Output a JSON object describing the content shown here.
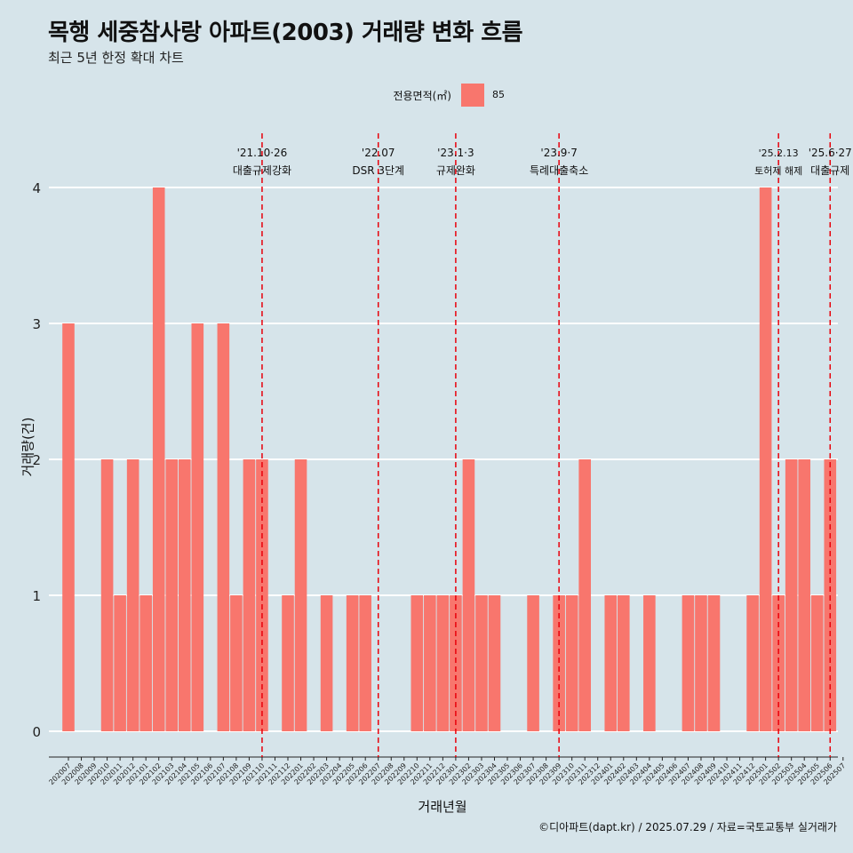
{
  "chart_data": {
    "type": "bar",
    "title": "목행 세중참사랑 아파트(2003) 거래량 변화 흐름",
    "subtitle": "최근 5년 한정 확대 차트",
    "xlabel": "거래년월",
    "ylabel": "거래량(건)",
    "caption": "©디아파트(dapt.kr) / 2025.07.29 / 자료=국토교통부 실거래가",
    "legend": {
      "title": "전용면적(㎡)",
      "position": "top",
      "entries": [
        {
          "label": "85",
          "color": "#f8766d"
        }
      ]
    },
    "ylim": [
      0,
      4
    ],
    "yticks": [
      0,
      1,
      2,
      3,
      4
    ],
    "grid": true,
    "categories": [
      "202007",
      "202008",
      "202009",
      "202010",
      "202011",
      "202012",
      "202101",
      "202102",
      "202103",
      "202104",
      "202105",
      "202106",
      "202107",
      "202108",
      "202109",
      "202110",
      "202111",
      "202112",
      "202201",
      "202202",
      "202203",
      "202204",
      "202205",
      "202206",
      "202207",
      "202208",
      "202209",
      "202210",
      "202211",
      "202212",
      "202301",
      "202302",
      "202303",
      "202304",
      "202305",
      "202306",
      "202307",
      "202308",
      "202309",
      "202310",
      "202311",
      "202312",
      "202401",
      "202402",
      "202403",
      "202404",
      "202405",
      "202406",
      "202407",
      "202408",
      "202409",
      "202410",
      "202411",
      "202412",
      "202501",
      "202502",
      "202503",
      "202504",
      "202505",
      "202506",
      "202507"
    ],
    "series": [
      {
        "name": "85",
        "color": "#f8766d",
        "values": [
          3,
          0,
          0,
          2,
          1,
          2,
          1,
          4,
          2,
          2,
          3,
          0,
          3,
          1,
          2,
          2,
          0,
          1,
          2,
          0,
          1,
          0,
          1,
          1,
          0,
          0,
          0,
          1,
          1,
          1,
          1,
          2,
          1,
          1,
          0,
          0,
          1,
          0,
          1,
          1,
          2,
          0,
          1,
          1,
          0,
          1,
          0,
          0,
          1,
          1,
          1,
          0,
          0,
          1,
          4,
          1,
          2,
          2,
          1,
          2,
          0
        ]
      }
    ],
    "annotations": [
      {
        "x": "202110",
        "date_label": "'21.10·26",
        "event_label": "대출규제강화"
      },
      {
        "x": "202207",
        "date_label": "'22.07",
        "event_label": "DSR 3단계"
      },
      {
        "x": "202301",
        "date_label": "'23.1·3",
        "event_label": "규제완화"
      },
      {
        "x": "202309",
        "date_label": "'23.9·7",
        "event_label": "특례대출축소"
      },
      {
        "x": "202502",
        "date_label": "'25.2.13",
        "event_label": "토허제 해제"
      },
      {
        "x": "202506",
        "date_label": "'25.6·27",
        "event_label": "대출규제"
      }
    ]
  }
}
